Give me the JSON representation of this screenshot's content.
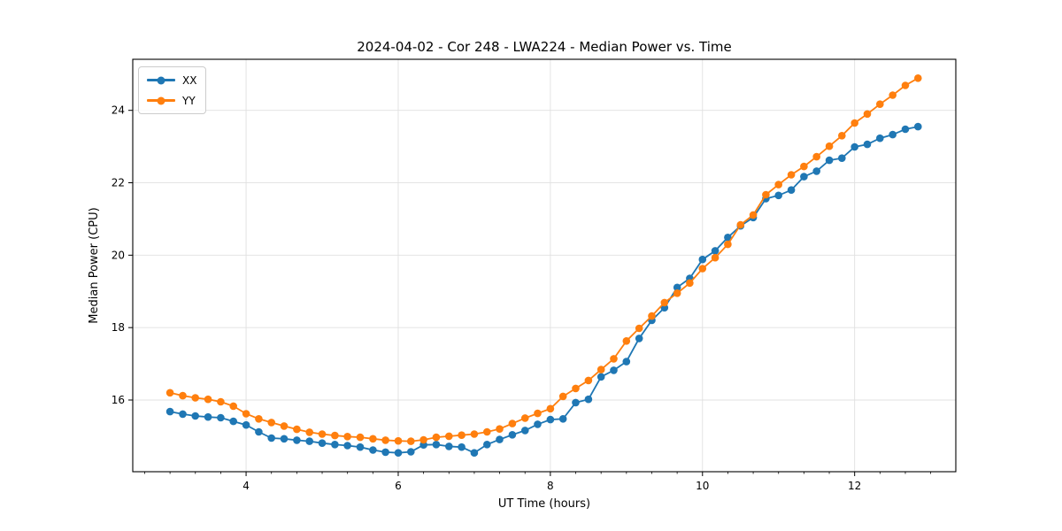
{
  "chart_data": {
    "type": "line",
    "title": "2024-04-02 - Cor 248 - LWA224 - Median Power vs. Time",
    "xlabel": "UT Time (hours)",
    "ylabel": "Median Power (CPU)",
    "xlim": [
      2.51,
      13.33
    ],
    "ylim": [
      14.02,
      25.41
    ],
    "xticks": [
      4,
      6,
      8,
      10,
      12
    ],
    "yticks": [
      16,
      18,
      20,
      22,
      24
    ],
    "x_minor_divisions": 6,
    "grid": true,
    "grid_color": "#e0e0e0",
    "legend_position": "upper-left",
    "x": [
      3.0,
      3.167,
      3.333,
      3.5,
      3.667,
      3.833,
      4.0,
      4.167,
      4.333,
      4.5,
      4.667,
      4.833,
      5.0,
      5.167,
      5.333,
      5.5,
      5.667,
      5.833,
      6.0,
      6.167,
      6.333,
      6.5,
      6.667,
      6.833,
      7.0,
      7.167,
      7.333,
      7.5,
      7.667,
      7.833,
      8.0,
      8.167,
      8.333,
      8.5,
      8.667,
      8.833,
      9.0,
      9.167,
      9.333,
      9.5,
      9.667,
      9.833,
      10.0,
      10.167,
      10.333,
      10.5,
      10.667,
      10.833,
      11.0,
      11.167,
      11.333,
      11.5,
      11.667,
      11.833,
      12.0,
      12.167,
      12.333,
      12.5,
      12.667,
      12.833
    ],
    "series": [
      {
        "name": "XX",
        "color": "#1f77b4",
        "values": [
          15.68,
          15.61,
          15.56,
          15.53,
          15.51,
          15.41,
          15.31,
          15.12,
          14.95,
          14.93,
          14.89,
          14.86,
          14.81,
          14.77,
          14.74,
          14.7,
          14.62,
          14.56,
          14.54,
          14.57,
          14.76,
          14.77,
          14.72,
          14.7,
          14.54,
          14.77,
          14.91,
          15.04,
          15.16,
          15.33,
          15.46,
          15.48,
          15.93,
          16.02,
          16.64,
          16.82,
          17.06,
          17.7,
          18.2,
          18.55,
          19.11,
          19.36,
          19.88,
          20.12,
          20.49,
          20.81,
          21.04,
          21.56,
          21.65,
          21.8,
          22.17,
          22.32,
          22.62,
          22.68,
          22.99,
          23.06,
          23.23,
          23.33,
          23.48,
          23.55
        ]
      },
      {
        "name": "YY",
        "color": "#ff7f0e",
        "values": [
          16.2,
          16.12,
          16.06,
          16.02,
          15.95,
          15.83,
          15.62,
          15.48,
          15.38,
          15.28,
          15.19,
          15.11,
          15.06,
          15.02,
          14.99,
          14.97,
          14.93,
          14.89,
          14.87,
          14.86,
          14.9,
          14.97,
          15.0,
          15.03,
          15.06,
          15.12,
          15.2,
          15.35,
          15.5,
          15.63,
          15.76,
          16.1,
          16.32,
          16.54,
          16.84,
          17.14,
          17.63,
          17.98,
          18.32,
          18.69,
          18.95,
          19.23,
          19.63,
          19.93,
          20.3,
          20.84,
          21.11,
          21.67,
          21.95,
          22.22,
          22.45,
          22.72,
          23.01,
          23.3,
          23.65,
          23.9,
          24.17,
          24.42,
          24.69,
          24.89
        ]
      }
    ]
  }
}
